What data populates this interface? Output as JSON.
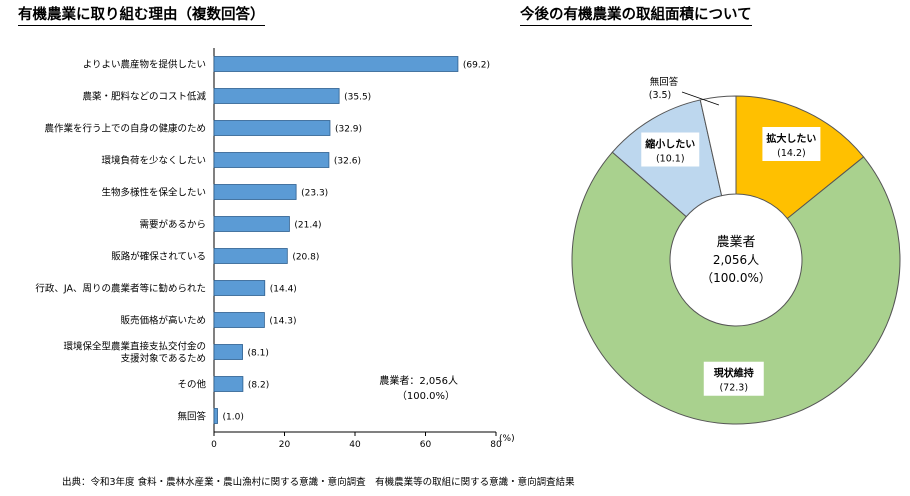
{
  "source_note": "出典：令和3年度 食料・農林水産業・農山漁村に関する意識・意向調査　有機農業等の取組に関する意識・意向調査結果",
  "chart_data": [
    {
      "type": "bar",
      "orientation": "horizontal",
      "title": "有機農業に取り組む理由（複数回答）",
      "categories": [
        "よりよい農産物を提供したい",
        "農薬・肥料などのコスト低減",
        "農作業を行う上での自身の健康のため",
        "環境負荷を少なくしたい",
        "生物多様性を保全したい",
        "需要があるから",
        "販路が確保されている",
        "行政、JA、周りの農業者等に勧められた",
        "販売価格が高いため",
        "環境保全型農業直接支払交付金の\n支援対象であるため",
        "その他",
        "無回答"
      ],
      "values": [
        69.2,
        35.5,
        32.9,
        32.6,
        23.3,
        21.4,
        20.8,
        14.4,
        14.3,
        8.1,
        8.2,
        1.0
      ],
      "value_labels": [
        "(69.2)",
        "(35.5)",
        "(32.9)",
        "(32.6)",
        "(23.3)",
        "(21.4)",
        "(20.8)",
        "(14.4)",
        "(14.3)",
        "(8.1)",
        "(8.2)",
        "(1.0)"
      ],
      "xlim": [
        0,
        80
      ],
      "xticks": [
        "0",
        "20",
        "40",
        "60",
        "80"
      ],
      "x_unit": "(%)",
      "annotation": [
        "農業者：2,056人",
        "（100.0%）"
      ],
      "bar_color": "#5b9bd5",
      "grid": false
    },
    {
      "type": "pie",
      "donut": true,
      "title": "今後の有機農業の取組面積について",
      "slices": [
        {
          "label": "拡大したい",
          "value": 14.2,
          "value_label": "(14.2)",
          "color": "#ffc000"
        },
        {
          "label": "現状維持",
          "value": 72.3,
          "value_label": "(72.3)",
          "color": "#a9d18e"
        },
        {
          "label": "縮小したい",
          "value": 10.1,
          "value_label": "(10.1)",
          "color": "#bdd7ee"
        },
        {
          "label": "無回答",
          "value": 3.5,
          "value_label": "(3.5)",
          "color": "#ffffff"
        }
      ],
      "center_text": [
        "農業者",
        "2,056人",
        "（100.0%）"
      ]
    }
  ]
}
